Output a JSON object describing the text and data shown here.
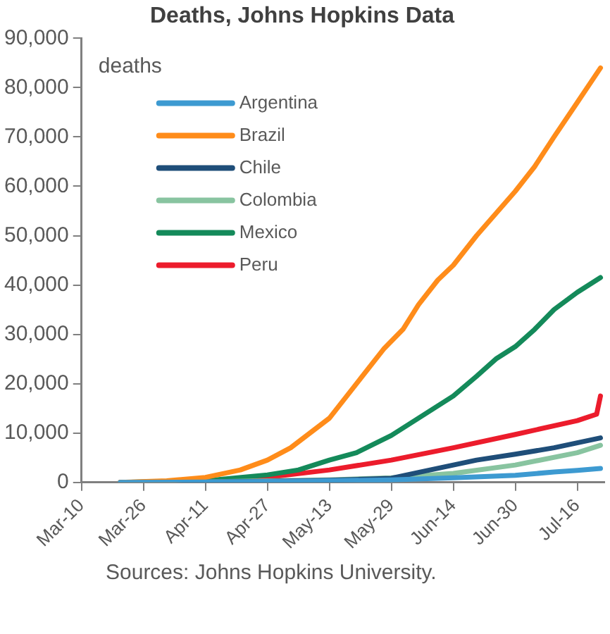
{
  "chart_data": {
    "type": "line",
    "title": "Deaths, Johns Hopkins Data",
    "legend_title": "deaths",
    "annotations": [
      "Sources: Johns Hopkins University."
    ],
    "xlim": [
      "--03-10",
      "--07-23"
    ],
    "xticks": [
      {
        "value": "--03-10",
        "label": "Mar-10"
      },
      {
        "value": "--03-26",
        "label": "Mar-26"
      },
      {
        "value": "--04-11",
        "label": "Apr-11"
      },
      {
        "value": "--04-27",
        "label": "Apr-27"
      },
      {
        "value": "--05-13",
        "label": "May-13"
      },
      {
        "value": "--05-29",
        "label": "May-29"
      },
      {
        "value": "--06-14",
        "label": "Jun-14"
      },
      {
        "value": "--06-30",
        "label": "Jun-30"
      },
      {
        "value": "--07-16",
        "label": "Jul-16"
      }
    ],
    "ylim": [
      0,
      90000
    ],
    "yticks": [
      0,
      {
        "value": 10000,
        "label": "10,000"
      },
      {
        "value": 20000,
        "label": "20,000"
      },
      {
        "value": 30000,
        "label": "30,000"
      },
      {
        "value": 40000,
        "label": "40,000"
      },
      {
        "value": 50000,
        "label": "50,000"
      },
      {
        "value": 60000,
        "label": "60,000"
      },
      {
        "value": 70000,
        "label": "70,000"
      },
      {
        "value": 80000,
        "label": "80,000"
      },
      {
        "value": 90000,
        "label": "90,000"
      }
    ],
    "grid": false,
    "legend": "top left",
    "marker": "none",
    "line_style": "solid",
    "series": [
      {
        "name": "Argentina",
        "color": "#3d9ad1",
        "x": [
          "--03-20",
          "--04-11",
          "--04-27",
          "--05-13",
          "--05-29",
          "--06-14",
          "--06-30",
          "--07-10",
          "--07-16",
          "--07-22"
        ],
        "values": [
          0,
          50,
          150,
          300,
          500,
          900,
          1400,
          2100,
          2400,
          2800
        ]
      },
      {
        "name": "Brazil",
        "color": "#ff8c1a",
        "x": [
          "--03-20",
          "--04-01",
          "--04-11",
          "--04-20",
          "--04-27",
          "--05-03",
          "--05-13",
          "--05-20",
          "--05-27",
          "--06-01",
          "--06-05",
          "--06-10",
          "--06-14",
          "--06-20",
          "--06-30",
          "--07-05",
          "--07-10",
          "--07-16",
          "--07-22"
        ],
        "values": [
          0,
          300,
          1000,
          2500,
          4500,
          7000,
          13000,
          20000,
          27000,
          31000,
          36000,
          41000,
          44000,
          50000,
          59000,
          64000,
          70000,
          77000,
          84000
        ]
      },
      {
        "name": "Chile",
        "color": "#1f4e79",
        "x": [
          "--03-20",
          "--04-11",
          "--04-27",
          "--05-13",
          "--05-29",
          "--06-05",
          "--06-14",
          "--06-20",
          "--06-30",
          "--07-10",
          "--07-16",
          "--07-22"
        ],
        "values": [
          0,
          50,
          200,
          400,
          800,
          2000,
          3500,
          4500,
          5700,
          7000,
          8000,
          9000
        ]
      },
      {
        "name": "Colombia",
        "color": "#88c4a0",
        "x": [
          "--03-20",
          "--04-11",
          "--04-27",
          "--05-13",
          "--05-29",
          "--06-14",
          "--06-30",
          "--07-16",
          "--07-22"
        ],
        "values": [
          0,
          100,
          300,
          500,
          900,
          1800,
          3500,
          6000,
          7500
        ]
      },
      {
        "name": "Mexico",
        "color": "#148a5a",
        "x": [
          "--03-20",
          "--04-11",
          "--04-27",
          "--05-05",
          "--05-13",
          "--05-20",
          "--05-29",
          "--06-03",
          "--06-10",
          "--06-14",
          "--06-20",
          "--06-25",
          "--06-30",
          "--07-05",
          "--07-10",
          "--07-16",
          "--07-22"
        ],
        "values": [
          0,
          300,
          1500,
          2500,
          4500,
          6000,
          9500,
          12000,
          15500,
          17500,
          21500,
          25000,
          27500,
          31000,
          35000,
          38500,
          41500
        ]
      },
      {
        "name": "Peru",
        "color": "#ec1c2c",
        "x": [
          "--03-20",
          "--04-11",
          "--04-27",
          "--05-13",
          "--05-29",
          "--06-14",
          "--06-30",
          "--07-16",
          "--07-21",
          "--07-22"
        ],
        "values": [
          0,
          200,
          1000,
          2500,
          4500,
          7000,
          9700,
          12500,
          13800,
          17500
        ]
      }
    ]
  }
}
